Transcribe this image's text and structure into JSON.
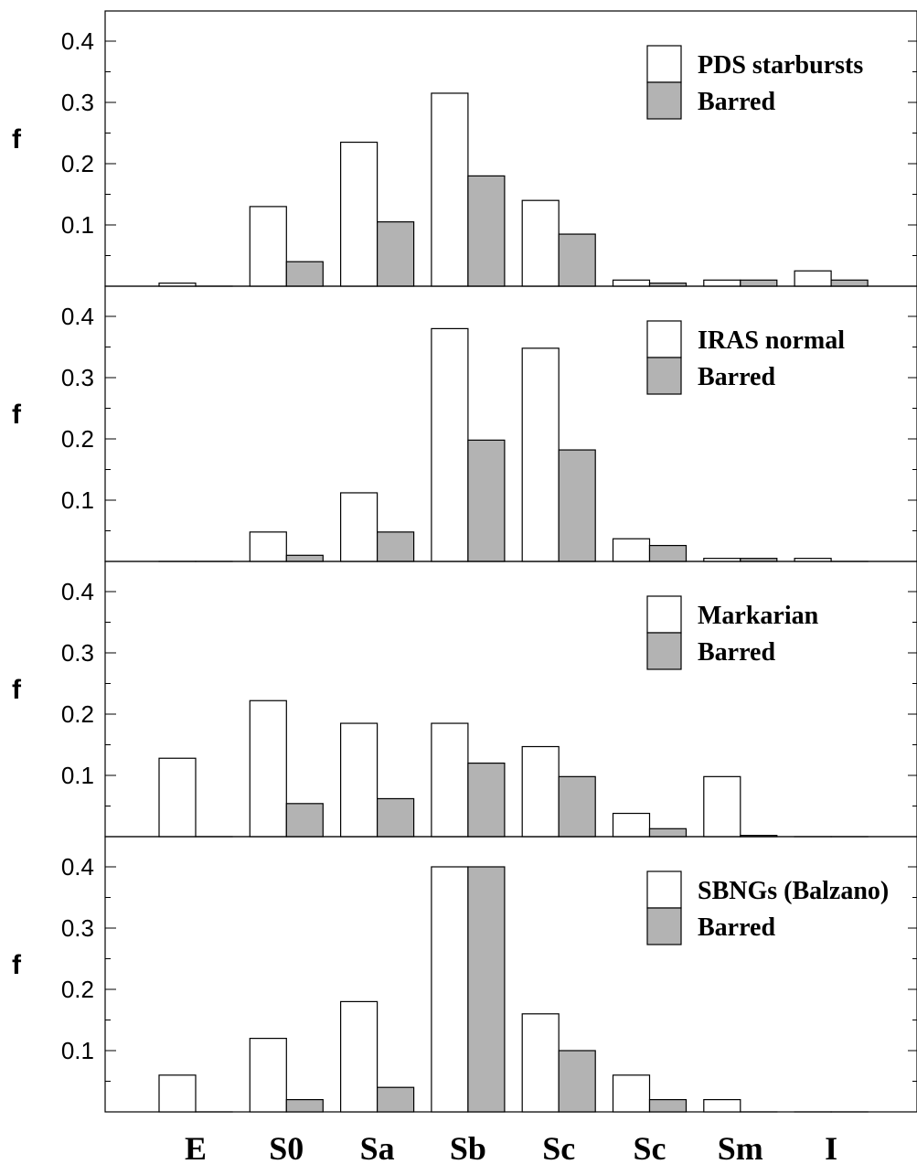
{
  "colors": {
    "frame": "#000000",
    "series_all": "#ffffff",
    "series_barred": "#b3b3b3"
  },
  "chart_data": [
    {
      "type": "bar",
      "categories": [
        "E",
        "S0",
        "Sa",
        "Sb",
        "Sc",
        "Sc",
        "Sm",
        "I"
      ],
      "ylabel": "f",
      "ylim": [
        0,
        0.45
      ],
      "yticks": [
        "0.1",
        "0.2",
        "0.3",
        "0.4"
      ],
      "legend_position": "top-right",
      "series": [
        {
          "name": "PDS starbursts",
          "values": [
            0.005,
            0.13,
            0.235,
            0.315,
            0.14,
            0.01,
            0.01,
            0.025
          ]
        },
        {
          "name": "Barred",
          "values": [
            0.0,
            0.04,
            0.105,
            0.18,
            0.085,
            0.005,
            0.01,
            0.01
          ]
        }
      ]
    },
    {
      "type": "bar",
      "categories": [
        "E",
        "S0",
        "Sa",
        "Sb",
        "Sc",
        "Sc",
        "Sm",
        "I"
      ],
      "ylabel": "f",
      "ylim": [
        0,
        0.45
      ],
      "yticks": [
        "0.1",
        "0.2",
        "0.3",
        "0.4"
      ],
      "legend_position": "top-right",
      "series": [
        {
          "name": "IRAS normal",
          "values": [
            0.0,
            0.048,
            0.112,
            0.38,
            0.348,
            0.037,
            0.005,
            0.005
          ]
        },
        {
          "name": "Barred",
          "values": [
            0.0,
            0.01,
            0.048,
            0.198,
            0.182,
            0.026,
            0.005,
            0.0
          ]
        }
      ]
    },
    {
      "type": "bar",
      "categories": [
        "E",
        "S0",
        "Sa",
        "Sb",
        "Sc",
        "Sc",
        "Sm",
        "I"
      ],
      "ylabel": "f",
      "ylim": [
        0,
        0.45
      ],
      "yticks": [
        "0.1",
        "0.2",
        "0.3",
        "0.4"
      ],
      "legend_position": "top-right",
      "series": [
        {
          "name": "Markarian",
          "values": [
            0.128,
            0.222,
            0.185,
            0.185,
            0.147,
            0.038,
            0.098,
            0.0
          ]
        },
        {
          "name": "Barred",
          "values": [
            0.0,
            0.054,
            0.062,
            0.12,
            0.098,
            0.013,
            0.002,
            0.0
          ]
        }
      ]
    },
    {
      "type": "bar",
      "categories": [
        "E",
        "S0",
        "Sa",
        "Sb",
        "Sc",
        "Sc",
        "Sm",
        "I"
      ],
      "ylabel": "f",
      "ylim": [
        0,
        0.45
      ],
      "yticks": [
        "0.1",
        "0.2",
        "0.3",
        "0.4"
      ],
      "legend_position": "top-right",
      "series": [
        {
          "name": "SBNGs (Balzano)",
          "values": [
            0.06,
            0.12,
            0.18,
            0.4,
            0.16,
            0.06,
            0.02,
            0.0
          ]
        },
        {
          "name": "Barred",
          "values": [
            0.0,
            0.02,
            0.04,
            0.4,
            0.1,
            0.02,
            0.0,
            0.0
          ]
        }
      ]
    }
  ]
}
